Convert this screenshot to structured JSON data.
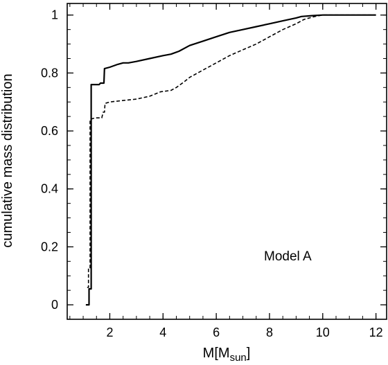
{
  "chart_data": {
    "type": "line",
    "title": "",
    "ylabel": "cumulative mass distribution",
    "xlabel": {
      "main": "M[M",
      "sub": "sun",
      "close": "]"
    },
    "xlim": [
      0.4,
      12.4
    ],
    "ylim": [
      -0.05,
      1.04
    ],
    "x_ticks": [
      2,
      4,
      6,
      8,
      10,
      12
    ],
    "y_ticks": [
      0,
      0.2,
      0.4,
      0.6,
      0.8,
      1
    ],
    "x_tick_labels": [
      "2",
      "4",
      "6",
      "8",
      "10",
      "12"
    ],
    "y_tick_labels": [
      "0",
      "0.2",
      "0.4",
      "0.6",
      "0.8",
      "1"
    ],
    "x_minor_step": 0.5,
    "y_minor_step": 0.05,
    "annotation": "Model A",
    "grid": false,
    "series": [
      {
        "style": "solid",
        "points": [
          [
            1.1,
            0
          ],
          [
            1.22,
            0
          ],
          [
            1.22,
            0.055
          ],
          [
            1.3,
            0.055
          ],
          [
            1.3,
            0.76
          ],
          [
            1.6,
            0.76
          ],
          [
            1.65,
            0.765
          ],
          [
            1.78,
            0.765
          ],
          [
            1.8,
            0.815
          ],
          [
            2.0,
            0.82
          ],
          [
            2.3,
            0.83
          ],
          [
            2.5,
            0.835
          ],
          [
            2.7,
            0.835
          ],
          [
            3.0,
            0.84
          ],
          [
            3.5,
            0.85
          ],
          [
            4.0,
            0.86
          ],
          [
            4.3,
            0.865
          ],
          [
            4.6,
            0.875
          ],
          [
            5.0,
            0.895
          ],
          [
            5.5,
            0.91
          ],
          [
            6.0,
            0.925
          ],
          [
            6.5,
            0.94
          ],
          [
            7.0,
            0.95
          ],
          [
            7.5,
            0.96
          ],
          [
            8.0,
            0.97
          ],
          [
            8.5,
            0.98
          ],
          [
            9.0,
            0.99
          ],
          [
            9.2,
            0.995
          ],
          [
            9.6,
            0.998
          ],
          [
            10.0,
            1.0
          ],
          [
            12.0,
            1.0
          ]
        ]
      },
      {
        "style": "dashed",
        "points": [
          [
            1.15,
            0.06
          ],
          [
            1.2,
            0.06
          ],
          [
            1.2,
            0.125
          ],
          [
            1.26,
            0.125
          ],
          [
            1.26,
            0.64
          ],
          [
            1.45,
            0.645
          ],
          [
            1.7,
            0.645
          ],
          [
            1.75,
            0.665
          ],
          [
            1.8,
            0.665
          ],
          [
            1.82,
            0.695
          ],
          [
            2.0,
            0.7
          ],
          [
            2.5,
            0.705
          ],
          [
            3.0,
            0.71
          ],
          [
            3.5,
            0.72
          ],
          [
            3.9,
            0.735
          ],
          [
            4.3,
            0.74
          ],
          [
            4.5,
            0.75
          ],
          [
            4.8,
            0.77
          ],
          [
            5.0,
            0.785
          ],
          [
            5.5,
            0.81
          ],
          [
            6.0,
            0.835
          ],
          [
            6.5,
            0.86
          ],
          [
            7.0,
            0.88
          ],
          [
            7.5,
            0.9
          ],
          [
            8.0,
            0.925
          ],
          [
            8.5,
            0.95
          ],
          [
            9.0,
            0.97
          ],
          [
            9.3,
            0.985
          ],
          [
            9.7,
            0.995
          ],
          [
            10.0,
            1.0
          ],
          [
            12.0,
            1.0
          ]
        ]
      }
    ]
  }
}
